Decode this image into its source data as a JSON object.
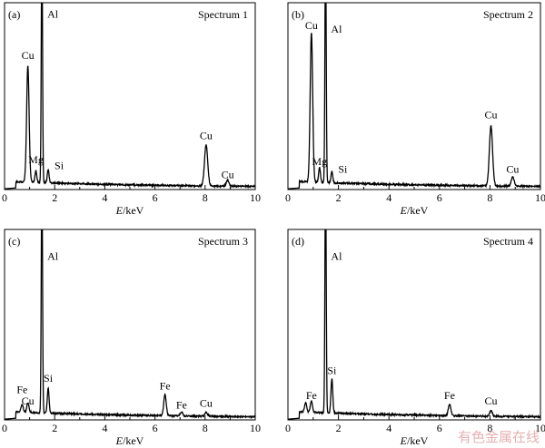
{
  "watermark_text": "有色金属在线",
  "chart_data": [
    {
      "type": "line",
      "panel_label": "(a)",
      "title": "Spectrum 1",
      "xlabel_italic": "E",
      "xlabel_unit": "/keV",
      "xlim": [
        0,
        10
      ],
      "xticks": [
        "0",
        "2",
        "4",
        "6",
        "8",
        "10"
      ],
      "baseline": 0.035,
      "peaks": [
        {
          "x": 0.93,
          "h": 0.62,
          "w": 0.07
        },
        {
          "x": 1.25,
          "h": 0.06,
          "w": 0.05
        },
        {
          "x": 1.49,
          "h": 1.3,
          "w": 0.035
        },
        {
          "x": 1.74,
          "h": 0.07,
          "w": 0.05
        },
        {
          "x": 8.04,
          "h": 0.22,
          "w": 0.09
        },
        {
          "x": 8.9,
          "h": 0.03,
          "w": 0.08
        }
      ],
      "labels": [
        {
          "text": "Al",
          "x": 1.49,
          "y": 0.92,
          "dx": 6
        },
        {
          "text": "Cu",
          "x": 0.93,
          "y": 0.7,
          "dx": 0
        },
        {
          "text": "Mg",
          "x": 1.25,
          "y": 0.14,
          "dx": 0
        },
        {
          "text": "Si",
          "x": 1.74,
          "y": 0.11,
          "dx": 7
        },
        {
          "text": "Cu",
          "x": 8.04,
          "y": 0.27,
          "dx": 0
        },
        {
          "text": "Cu",
          "x": 8.9,
          "y": 0.06,
          "dx": 0
        }
      ]
    },
    {
      "type": "line",
      "panel_label": "(b)",
      "title": "Spectrum 2",
      "xlabel_italic": "E",
      "xlabel_unit": "/keV",
      "xlim": [
        0,
        10
      ],
      "xticks": [
        "0",
        "2",
        "4",
        "6",
        "8",
        "10"
      ],
      "baseline": 0.035,
      "peaks": [
        {
          "x": 0.93,
          "h": 0.8,
          "w": 0.07
        },
        {
          "x": 1.25,
          "h": 0.08,
          "w": 0.05
        },
        {
          "x": 1.49,
          "h": 1.3,
          "w": 0.035
        },
        {
          "x": 1.74,
          "h": 0.06,
          "w": 0.05
        },
        {
          "x": 8.04,
          "h": 0.32,
          "w": 0.09
        },
        {
          "x": 8.9,
          "h": 0.05,
          "w": 0.08
        }
      ],
      "labels": [
        {
          "text": "Cu",
          "x": 0.93,
          "y": 0.86,
          "dx": 0
        },
        {
          "text": "Al",
          "x": 1.49,
          "y": 0.84,
          "dx": 6
        },
        {
          "text": "Mg",
          "x": 1.25,
          "y": 0.13,
          "dx": 0
        },
        {
          "text": "Si",
          "x": 1.74,
          "y": 0.09,
          "dx": 7
        },
        {
          "text": "Cu",
          "x": 8.04,
          "y": 0.38,
          "dx": 0
        },
        {
          "text": "Cu",
          "x": 8.9,
          "y": 0.09,
          "dx": 0
        }
      ]
    },
    {
      "type": "line",
      "panel_label": "(c)",
      "title": "Spectrum 3",
      "xlabel_italic": "E",
      "xlabel_unit": "/keV",
      "xlim": [
        0,
        10
      ],
      "xticks": [
        "0",
        "2",
        "4",
        "6",
        "8",
        "10"
      ],
      "baseline": 0.035,
      "peaks": [
        {
          "x": 0.7,
          "h": 0.04,
          "w": 0.06
        },
        {
          "x": 0.93,
          "h": 0.05,
          "w": 0.06
        },
        {
          "x": 1.49,
          "h": 1.3,
          "w": 0.035
        },
        {
          "x": 1.74,
          "h": 0.13,
          "w": 0.05
        },
        {
          "x": 6.4,
          "h": 0.11,
          "w": 0.07
        },
        {
          "x": 7.06,
          "h": 0.02,
          "w": 0.07
        },
        {
          "x": 8.04,
          "h": 0.02,
          "w": 0.07
        }
      ],
      "labels": [
        {
          "text": "Al",
          "x": 1.49,
          "y": 0.84,
          "dx": 6
        },
        {
          "text": "Fe",
          "x": 0.7,
          "y": 0.14,
          "dx": 0
        },
        {
          "text": "Cu",
          "x": 0.93,
          "y": 0.08,
          "dx": 0
        },
        {
          "text": "Si",
          "x": 1.74,
          "y": 0.2,
          "dx": 0
        },
        {
          "text": "Fe",
          "x": 6.4,
          "y": 0.16,
          "dx": 0
        },
        {
          "text": "Fe",
          "x": 7.06,
          "y": 0.06,
          "dx": 0
        },
        {
          "text": "Cu",
          "x": 8.04,
          "y": 0.07,
          "dx": 0
        }
      ]
    },
    {
      "type": "line",
      "panel_label": "(d)",
      "title": "Spectrum 4",
      "xlabel_italic": "E",
      "xlabel_unit": "/keV",
      "xlim": [
        0,
        10
      ],
      "xticks": [
        "0",
        "2",
        "4",
        "6",
        "8",
        "10"
      ],
      "baseline": 0.035,
      "peaks": [
        {
          "x": 0.7,
          "h": 0.05,
          "w": 0.06
        },
        {
          "x": 0.93,
          "h": 0.06,
          "w": 0.06
        },
        {
          "x": 1.49,
          "h": 1.3,
          "w": 0.035
        },
        {
          "x": 1.74,
          "h": 0.18,
          "w": 0.05
        },
        {
          "x": 6.4,
          "h": 0.06,
          "w": 0.07
        },
        {
          "x": 8.04,
          "h": 0.03,
          "w": 0.07
        }
      ],
      "labels": [
        {
          "text": "Al",
          "x": 1.49,
          "y": 0.84,
          "dx": 6
        },
        {
          "text": "Fe",
          "x": 0.93,
          "y": 0.11,
          "dx": 0
        },
        {
          "text": "Si",
          "x": 1.74,
          "y": 0.24,
          "dx": 0
        },
        {
          "text": "Fe",
          "x": 6.4,
          "y": 0.11,
          "dx": 0
        },
        {
          "text": "Cu",
          "x": 8.04,
          "y": 0.08,
          "dx": 0
        }
      ]
    }
  ]
}
